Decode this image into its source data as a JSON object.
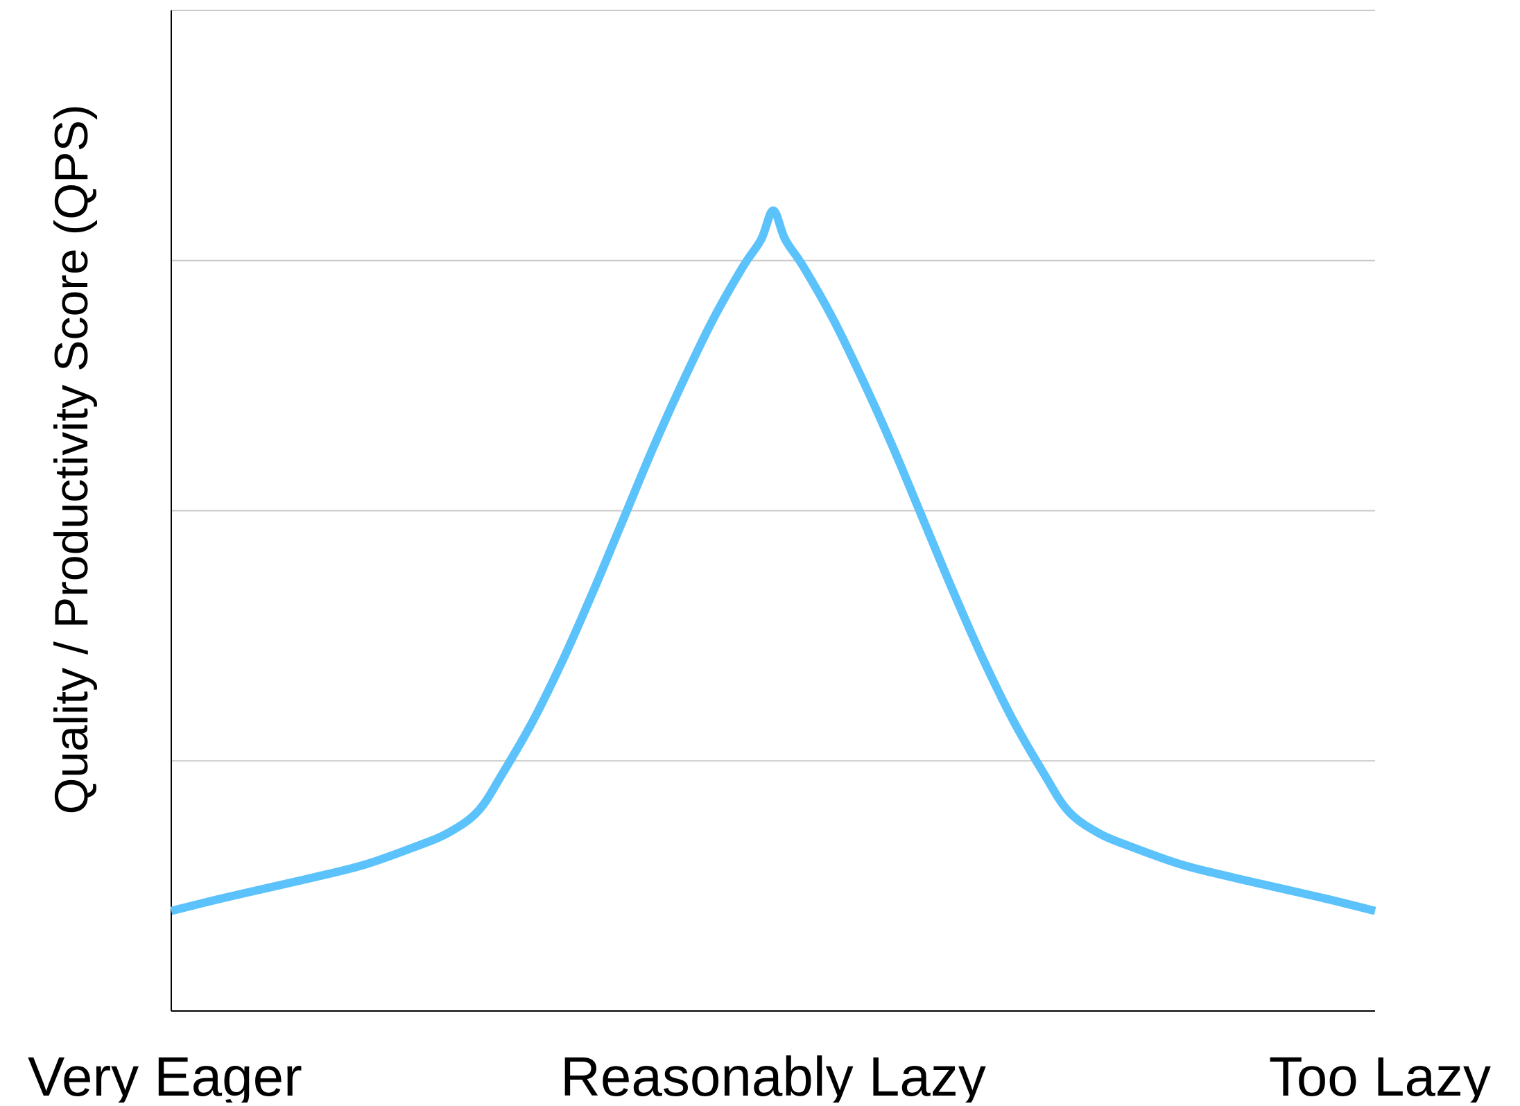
{
  "chart_data": {
    "type": "line",
    "title": "",
    "xlabel": "",
    "ylabel": "Quality / Productivity Score (QPS)",
    "x_tick_labels": [
      {
        "label": "Very Eager",
        "x": 0.0
      },
      {
        "label": "Reasonably Lazy",
        "x": 0.5
      },
      {
        "label": "Too Lazy",
        "x": 1.0
      }
    ],
    "xlim": [
      0,
      1
    ],
    "ylim": [
      0,
      1
    ],
    "grid": true,
    "grid_y_values": [
      0.25,
      0.5,
      0.75,
      1.0
    ],
    "series": [
      {
        "color": "#5bc2fb",
        "points": [
          [
            0.0,
            0.1
          ],
          [
            0.04,
            0.112
          ],
          [
            0.08,
            0.123
          ],
          [
            0.12,
            0.134
          ],
          [
            0.16,
            0.146
          ],
          [
            0.2,
            0.163
          ],
          [
            0.23,
            0.178
          ],
          [
            0.255,
            0.2
          ],
          [
            0.275,
            0.237
          ],
          [
            0.3,
            0.289
          ],
          [
            0.325,
            0.35
          ],
          [
            0.35,
            0.418
          ],
          [
            0.375,
            0.49
          ],
          [
            0.4,
            0.562
          ],
          [
            0.425,
            0.629
          ],
          [
            0.45,
            0.691
          ],
          [
            0.475,
            0.744
          ],
          [
            0.49,
            0.771
          ],
          [
            0.5,
            0.8
          ],
          [
            0.51,
            0.771
          ],
          [
            0.525,
            0.744
          ],
          [
            0.55,
            0.691
          ],
          [
            0.575,
            0.629
          ],
          [
            0.6,
            0.562
          ],
          [
            0.625,
            0.49
          ],
          [
            0.65,
            0.418
          ],
          [
            0.675,
            0.35
          ],
          [
            0.7,
            0.289
          ],
          [
            0.725,
            0.237
          ],
          [
            0.745,
            0.2
          ],
          [
            0.77,
            0.178
          ],
          [
            0.8,
            0.163
          ],
          [
            0.84,
            0.146
          ],
          [
            0.88,
            0.134
          ],
          [
            0.92,
            0.123
          ],
          [
            0.96,
            0.112
          ],
          [
            1.0,
            0.1
          ]
        ]
      }
    ]
  }
}
